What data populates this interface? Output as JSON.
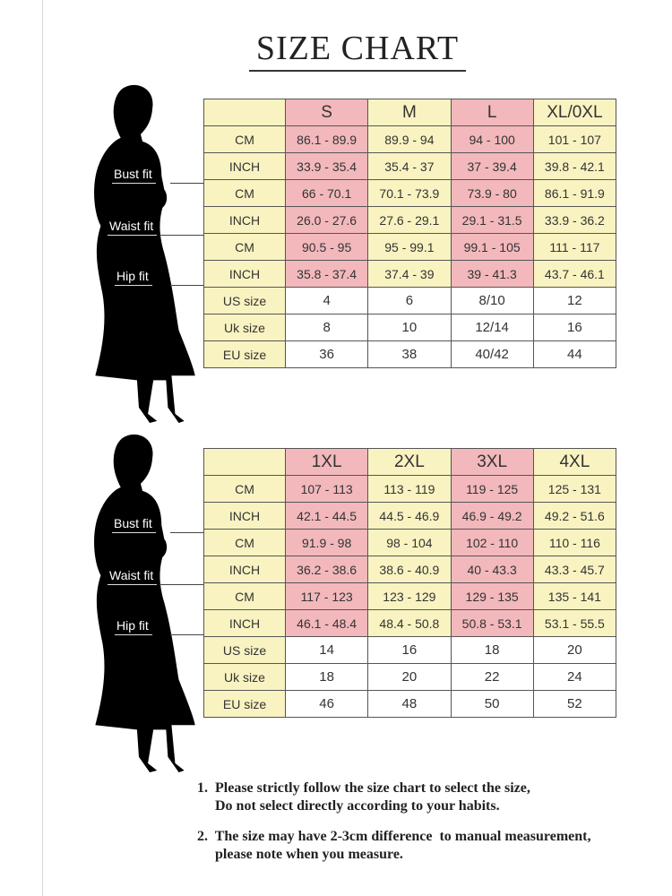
{
  "title": "SIZE CHART",
  "fit_labels": {
    "bust": "Bust fit",
    "waist": "Waist fit",
    "hip": "Hip fit"
  },
  "colors": {
    "pink": "#f2b8bc",
    "yellow": "#f9f3c1",
    "white": "#ffffff"
  },
  "tables": [
    {
      "sizes": [
        "S",
        "M",
        "L",
        "XL/0XL"
      ],
      "rows": [
        {
          "label": "CM",
          "values": [
            "86.1 - 89.9",
            "89.9 - 94",
            "94 - 100",
            "101 - 107"
          ]
        },
        {
          "label": "INCH",
          "values": [
            "33.9 - 35.4",
            "35.4 - 37",
            "37 - 39.4",
            "39.8 - 42.1"
          ]
        },
        {
          "label": "CM",
          "values": [
            "66 - 70.1",
            "70.1 - 73.9",
            "73.9 - 80",
            "86.1 - 91.9"
          ]
        },
        {
          "label": "INCH",
          "values": [
            "26.0 - 27.6",
            "27.6 - 29.1",
            "29.1 - 31.5",
            "33.9 - 36.2"
          ]
        },
        {
          "label": "CM",
          "values": [
            "90.5 - 95",
            "95 - 99.1",
            "99.1 - 105",
            "111 - 117"
          ]
        },
        {
          "label": "INCH",
          "values": [
            "35.8 - 37.4",
            "37.4 - 39",
            "39 - 41.3",
            "43.7 - 46.1"
          ]
        },
        {
          "label": "US size",
          "values": [
            "4",
            "6",
            "8/10",
            "12"
          ]
        },
        {
          "label": "Uk size",
          "values": [
            "8",
            "10",
            "12/14",
            "16"
          ]
        },
        {
          "label": "EU size",
          "values": [
            "36",
            "38",
            "40/42",
            "44"
          ]
        }
      ]
    },
    {
      "sizes": [
        "1XL",
        "2XL",
        "3XL",
        "4XL"
      ],
      "rows": [
        {
          "label": "CM",
          "values": [
            "107 - 113",
            "113 - 119",
            "119 - 125",
            "125 - 131"
          ]
        },
        {
          "label": "INCH",
          "values": [
            "42.1 - 44.5",
            "44.5 - 46.9",
            "46.9 - 49.2",
            "49.2 - 51.6"
          ]
        },
        {
          "label": "CM",
          "values": [
            "91.9 - 98",
            "98 - 104",
            "102 - 110",
            "110 - 116"
          ]
        },
        {
          "label": "INCH",
          "values": [
            "36.2 - 38.6",
            "38.6 - 40.9",
            "40 - 43.3",
            "43.3 - 45.7"
          ]
        },
        {
          "label": "CM",
          "values": [
            "117 - 123",
            "123 - 129",
            "129 - 135",
            "135 - 141"
          ]
        },
        {
          "label": "INCH",
          "values": [
            "46.1 - 48.4",
            "48.4 - 50.8",
            "50.8 - 53.1",
            "53.1 - 55.5"
          ]
        },
        {
          "label": "US size",
          "values": [
            "14",
            "16",
            "18",
            "20"
          ]
        },
        {
          "label": "Uk size",
          "values": [
            "18",
            "20",
            "22",
            "24"
          ]
        },
        {
          "label": "EU size",
          "values": [
            "46",
            "48",
            "50",
            "52"
          ]
        }
      ]
    }
  ],
  "notes": [
    "1.  Please strictly follow the size chart to select the size,\n     Do not select directly according to your habits.",
    "2.  The size may have 2-3cm difference  to manual measurement,\n     please note when you measure."
  ]
}
